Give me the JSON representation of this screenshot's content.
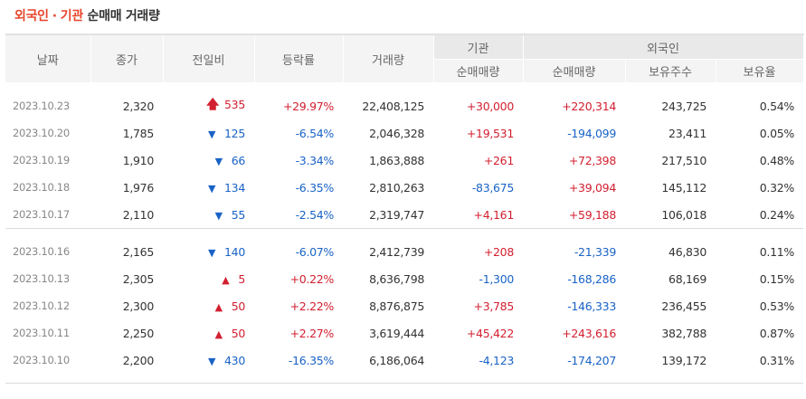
{
  "title": {
    "part1": "외국인",
    "dot": "·",
    "part2": "기관",
    "rest": "순매매 거래량"
  },
  "headers": {
    "date": "날짜",
    "close": "종가",
    "change": "전일비",
    "rate": "등락률",
    "volume": "거래량",
    "inst_group": "기관",
    "inst_net": "순매매량",
    "foreign_group": "외국인",
    "foreign_net": "순매매량",
    "foreign_hold": "보유주수",
    "foreign_ratio": "보유율"
  },
  "rows": [
    {
      "date": "2023.10.23",
      "close": "2,320",
      "arrow": "🡅",
      "dir": "uplimit",
      "change": "535",
      "rate": "+29.97%",
      "volume": "22,408,125",
      "inst": "+30,000",
      "inst_dir": "up",
      "foreign": "+220,314",
      "foreign_dir": "up",
      "hold": "243,725",
      "ratio": "0.54%"
    },
    {
      "date": "2023.10.20",
      "close": "1,785",
      "arrow": "▼",
      "dir": "down",
      "change": "125",
      "rate": "-6.54%",
      "volume": "2,046,328",
      "inst": "+19,531",
      "inst_dir": "up",
      "foreign": "-194,099",
      "foreign_dir": "down",
      "hold": "23,411",
      "ratio": "0.05%"
    },
    {
      "date": "2023.10.19",
      "close": "1,910",
      "arrow": "▼",
      "dir": "down",
      "change": "66",
      "rate": "-3.34%",
      "volume": "1,863,888",
      "inst": "+261",
      "inst_dir": "up",
      "foreign": "+72,398",
      "foreign_dir": "up",
      "hold": "217,510",
      "ratio": "0.48%"
    },
    {
      "date": "2023.10.18",
      "close": "1,976",
      "arrow": "▼",
      "dir": "down",
      "change": "134",
      "rate": "-6.35%",
      "volume": "2,810,263",
      "inst": "-83,675",
      "inst_dir": "down",
      "foreign": "+39,094",
      "foreign_dir": "up",
      "hold": "145,112",
      "ratio": "0.32%"
    },
    {
      "date": "2023.10.17",
      "close": "2,110",
      "arrow": "▼",
      "dir": "down",
      "change": "55",
      "rate": "-2.54%",
      "volume": "2,319,747",
      "inst": "+4,161",
      "inst_dir": "up",
      "foreign": "+59,188",
      "foreign_dir": "up",
      "hold": "106,018",
      "ratio": "0.24%"
    },
    {
      "date": "2023.10.16",
      "close": "2,165",
      "arrow": "▼",
      "dir": "down",
      "change": "140",
      "rate": "-6.07%",
      "volume": "2,412,739",
      "inst": "+208",
      "inst_dir": "up",
      "foreign": "-21,339",
      "foreign_dir": "down",
      "hold": "46,830",
      "ratio": "0.11%"
    },
    {
      "date": "2023.10.13",
      "close": "2,305",
      "arrow": "▲",
      "dir": "up",
      "change": "5",
      "rate": "+0.22%",
      "volume": "8,636,798",
      "inst": "-1,300",
      "inst_dir": "down",
      "foreign": "-168,286",
      "foreign_dir": "down",
      "hold": "68,169",
      "ratio": "0.15%"
    },
    {
      "date": "2023.10.12",
      "close": "2,300",
      "arrow": "▲",
      "dir": "up",
      "change": "50",
      "rate": "+2.22%",
      "volume": "8,876,875",
      "inst": "+3,785",
      "inst_dir": "up",
      "foreign": "-146,333",
      "foreign_dir": "down",
      "hold": "236,455",
      "ratio": "0.53%"
    },
    {
      "date": "2023.10.11",
      "close": "2,250",
      "arrow": "▲",
      "dir": "up",
      "change": "50",
      "rate": "+2.27%",
      "volume": "3,619,444",
      "inst": "+45,422",
      "inst_dir": "up",
      "foreign": "+243,616",
      "foreign_dir": "up",
      "hold": "382,788",
      "ratio": "0.87%"
    },
    {
      "date": "2023.10.10",
      "close": "2,200",
      "arrow": "▼",
      "dir": "down",
      "change": "430",
      "rate": "-16.35%",
      "volume": "6,186,064",
      "inst": "-4,123",
      "inst_dir": "down",
      "foreign": "-174,207",
      "foreign_dir": "down",
      "hold": "139,172",
      "ratio": "0.31%"
    }
  ],
  "colors": {
    "up": "#d21f2f",
    "down": "#1a63c6",
    "title_accent": "#e8452a",
    "header_bg": "#f4f4f4"
  }
}
